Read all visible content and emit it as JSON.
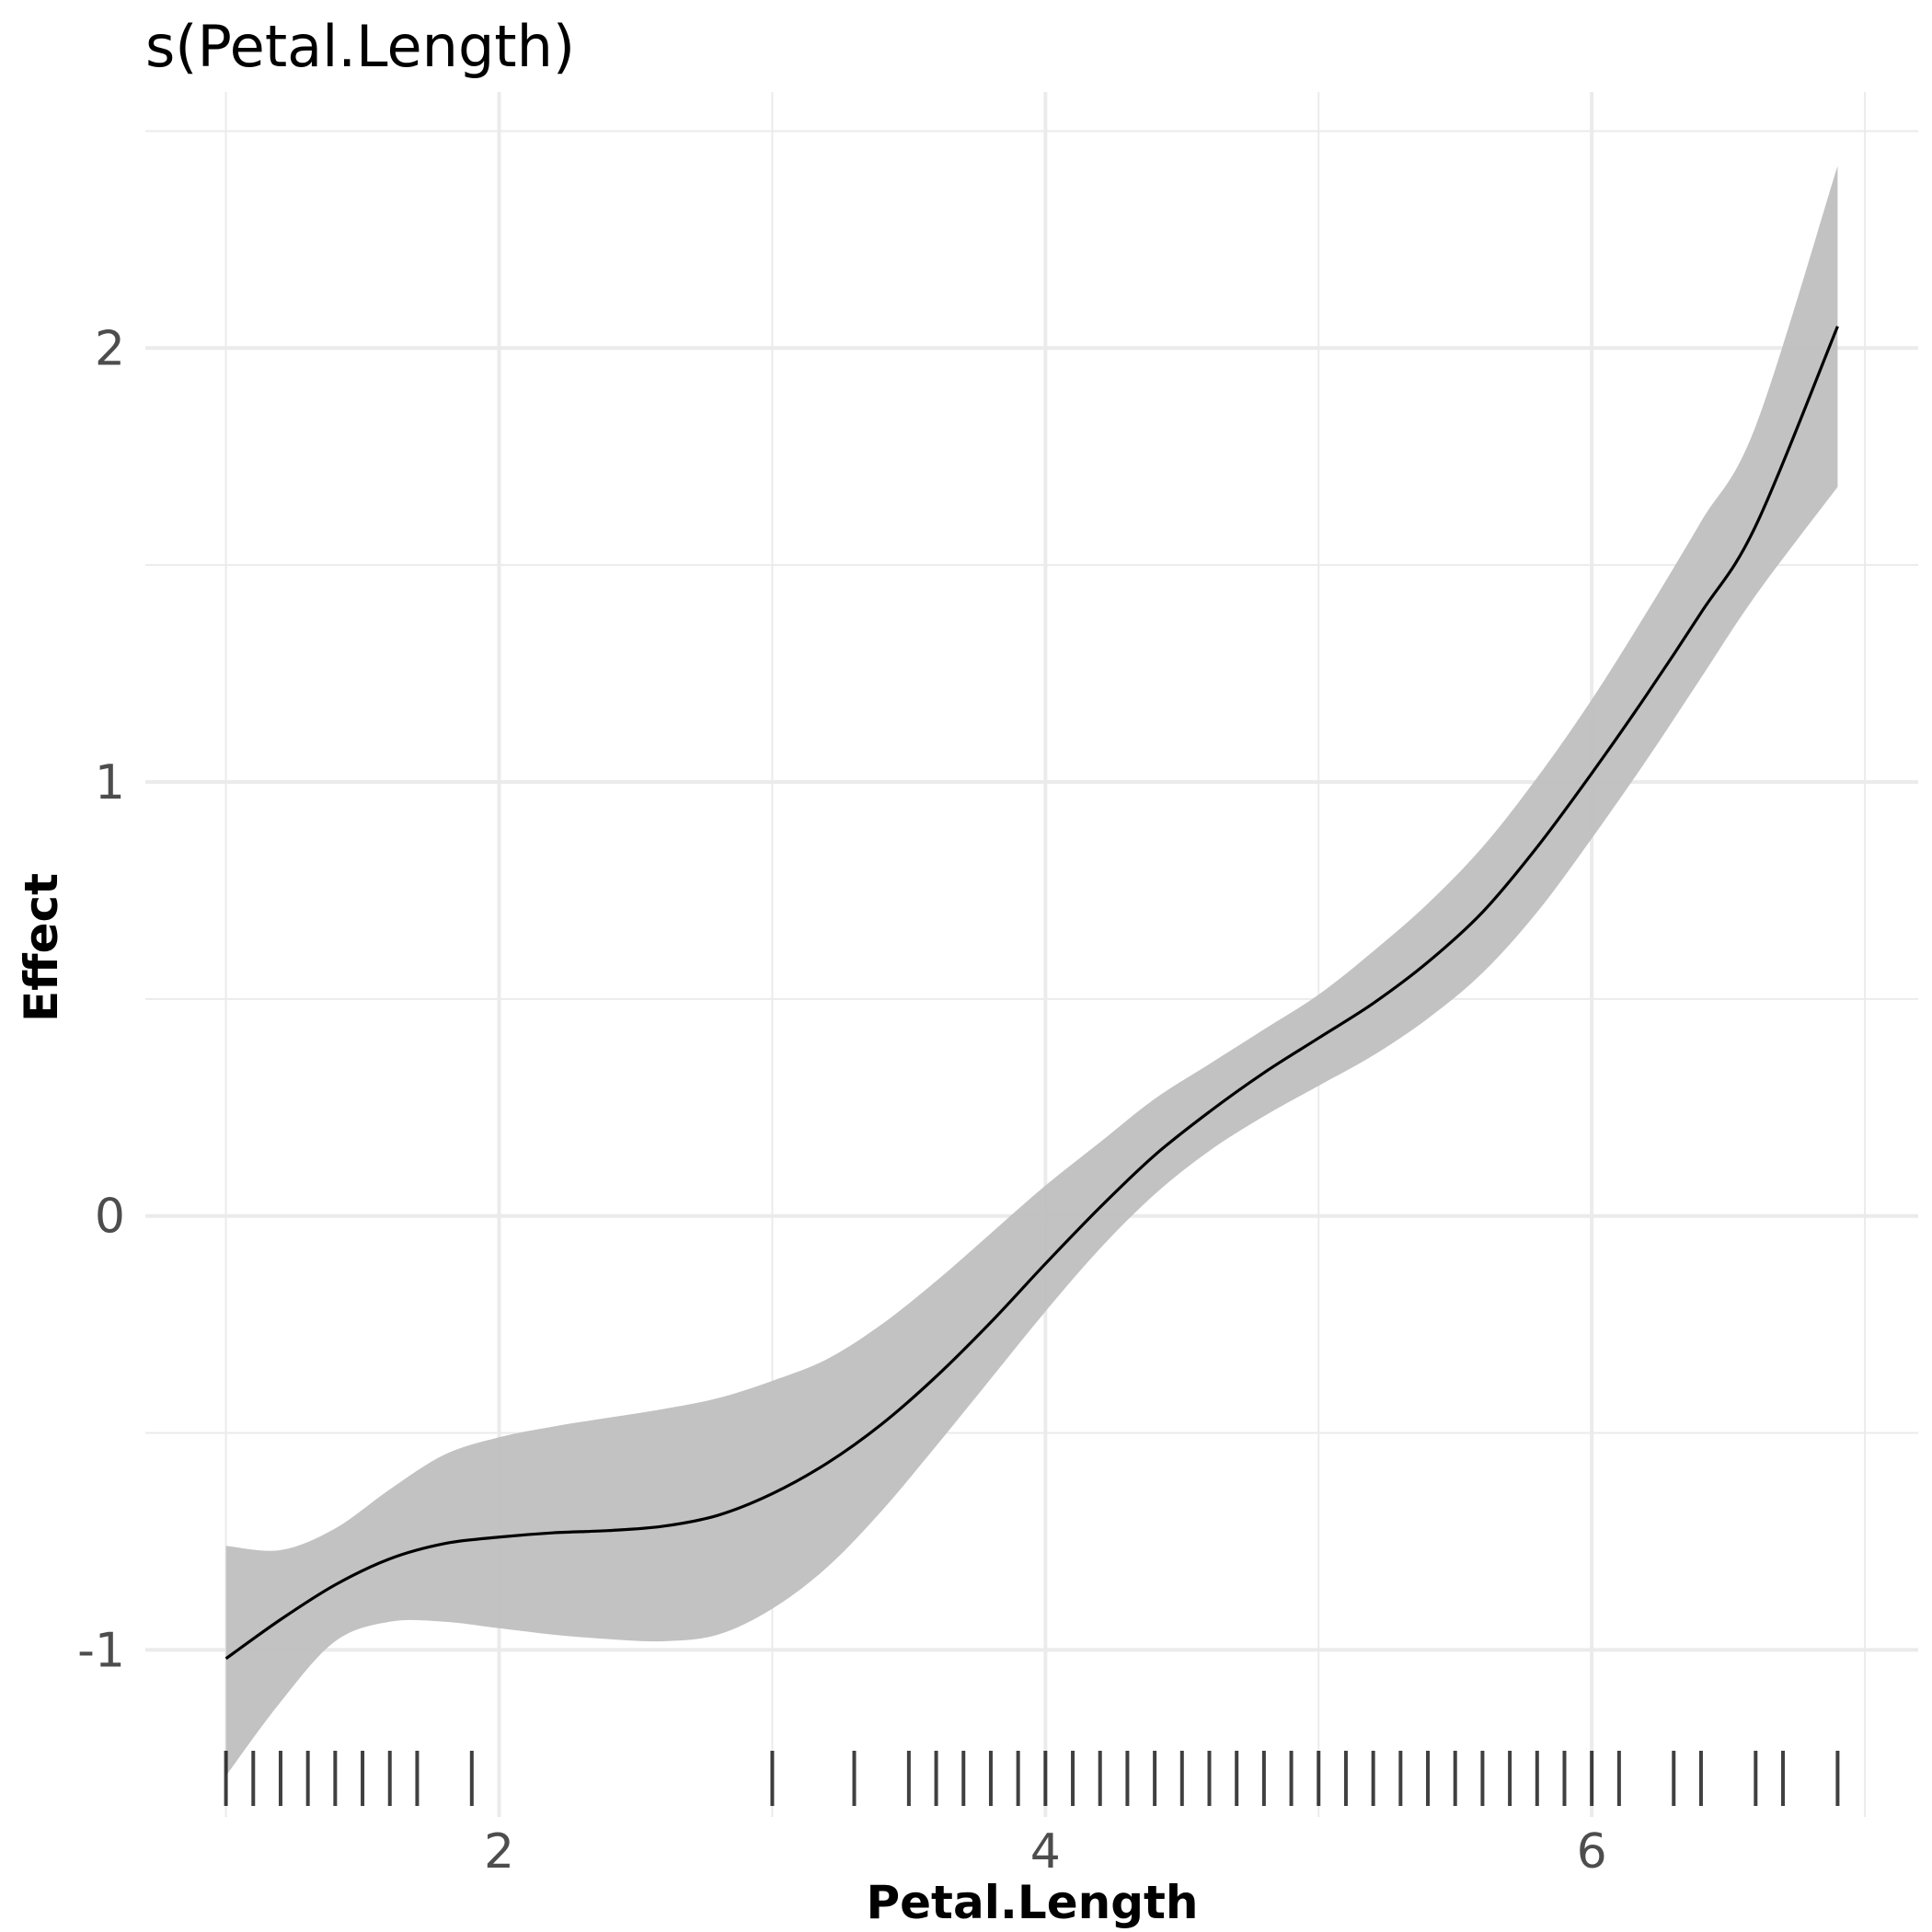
{
  "chart_data": {
    "type": "line",
    "title": "s(Petal.Length)",
    "xlabel": "Petal.Length",
    "ylabel": "Effect",
    "xlim": [
      0.705,
      7.195
    ],
    "ylim": [
      -1.385,
      2.59
    ],
    "x_ticks": [
      2,
      4,
      6
    ],
    "x_tick_labels": [
      "2",
      "4",
      "6"
    ],
    "y_ticks": [
      -1,
      0,
      1,
      2
    ],
    "y_tick_labels": [
      "-1",
      "0",
      "1",
      "2"
    ],
    "grid": true,
    "legend": "none",
    "colors": {
      "line": "#000000",
      "ribbon": "#bfbfbf",
      "grid": "#ebebeb",
      "rug": "#000000"
    },
    "series": [
      {
        "x": [
          1.0,
          1.2,
          1.4,
          1.6,
          1.8,
          2.0,
          2.2,
          2.4,
          2.6,
          2.8,
          3.0,
          3.2,
          3.4,
          3.6,
          3.8,
          4.0,
          4.2,
          4.4,
          4.6,
          4.8,
          5.0,
          5.2,
          5.4,
          5.6,
          5.8,
          6.0,
          6.2,
          6.4,
          6.6,
          6.9
        ],
        "fit": [
          -1.02,
          -0.93,
          -0.85,
          -0.79,
          -0.755,
          -0.74,
          -0.73,
          -0.725,
          -0.715,
          -0.69,
          -0.64,
          -0.57,
          -0.48,
          -0.37,
          -0.245,
          -0.11,
          0.02,
          0.14,
          0.24,
          0.33,
          0.41,
          0.49,
          0.585,
          0.7,
          0.85,
          1.02,
          1.2,
          1.39,
          1.59,
          2.05
        ],
        "lower": [
          -1.29,
          -1.12,
          -0.98,
          -0.935,
          -0.935,
          -0.95,
          -0.965,
          -0.975,
          -0.98,
          -0.965,
          -0.905,
          -0.81,
          -0.68,
          -0.53,
          -0.375,
          -0.22,
          -0.075,
          0.05,
          0.15,
          0.23,
          0.3,
          0.37,
          0.455,
          0.56,
          0.7,
          0.87,
          1.05,
          1.24,
          1.43,
          1.68
        ],
        "upper": [
          -0.76,
          -0.77,
          -0.72,
          -0.63,
          -0.55,
          -0.51,
          -0.485,
          -0.465,
          -0.445,
          -0.42,
          -0.38,
          -0.33,
          -0.25,
          -0.15,
          -0.04,
          0.07,
          0.17,
          0.27,
          0.35,
          0.43,
          0.51,
          0.61,
          0.72,
          0.85,
          1.01,
          1.19,
          1.39,
          1.6,
          1.82,
          2.42
        ]
      }
    ],
    "rug": [
      1.0,
      1.1,
      1.2,
      1.3,
      1.4,
      1.5,
      1.6,
      1.7,
      1.9,
      3.0,
      3.3,
      3.5,
      3.6,
      3.7,
      3.8,
      3.9,
      4.0,
      4.1,
      4.2,
      4.3,
      4.4,
      4.5,
      4.6,
      4.7,
      4.8,
      4.9,
      5.0,
      5.1,
      5.2,
      5.3,
      5.4,
      5.5,
      5.6,
      5.7,
      5.8,
      5.9,
      6.0,
      6.1,
      6.3,
      6.4,
      6.6,
      6.7,
      6.9
    ]
  }
}
